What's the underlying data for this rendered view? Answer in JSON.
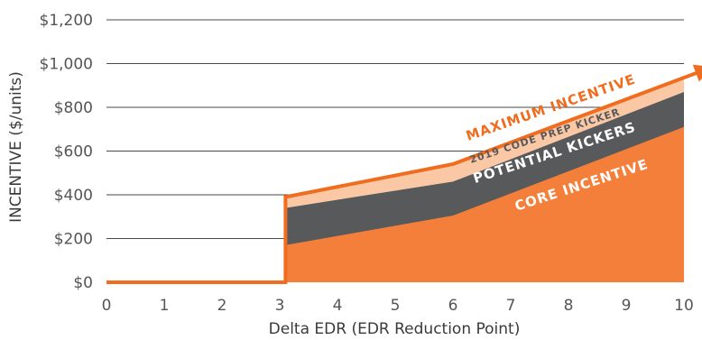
{
  "chart_data": {
    "type": "area",
    "xlabel": "Delta EDR (EDR Reduction Point)",
    "ylabel": "INCENTIVE ($/units)",
    "xlim": [
      0,
      10
    ],
    "ylim": [
      0,
      1200
    ],
    "x_ticks": [
      "0",
      "1",
      "2",
      "3",
      "4",
      "5",
      "6",
      "7",
      "8",
      "9",
      "10"
    ],
    "y_ticks": [
      "$0",
      "$200",
      "$400",
      "$600",
      "$800",
      "$1,000",
      "$1,200"
    ],
    "grid": true,
    "colors": {
      "core": "#f47f3b",
      "kickers": "#58595b",
      "code_prep": "#fbc8a6",
      "max_line": "#f06c1e",
      "grid": "#4a4a4a"
    },
    "series": [
      {
        "name": "CORE INCENTIVE",
        "x": [
          3.1,
          3.1,
          6,
          10
        ],
        "values": [
          0,
          170,
          305,
          710
        ]
      },
      {
        "name": "POTENTIAL KICKERS",
        "x": [
          3.1,
          3.1,
          6,
          10
        ],
        "values": [
          0,
          340,
          460,
          870
        ]
      },
      {
        "name": "2019 CODE PREP KICKER",
        "x": [
          3.1,
          3.1,
          6,
          10
        ],
        "values": [
          0,
          390,
          540,
          935
        ]
      },
      {
        "name": "MAXIMUM INCENTIVE",
        "x": [
          0,
          3.1,
          3.1,
          6,
          10.5
        ],
        "values": [
          0,
          0,
          390,
          540,
          985
        ]
      }
    ]
  }
}
